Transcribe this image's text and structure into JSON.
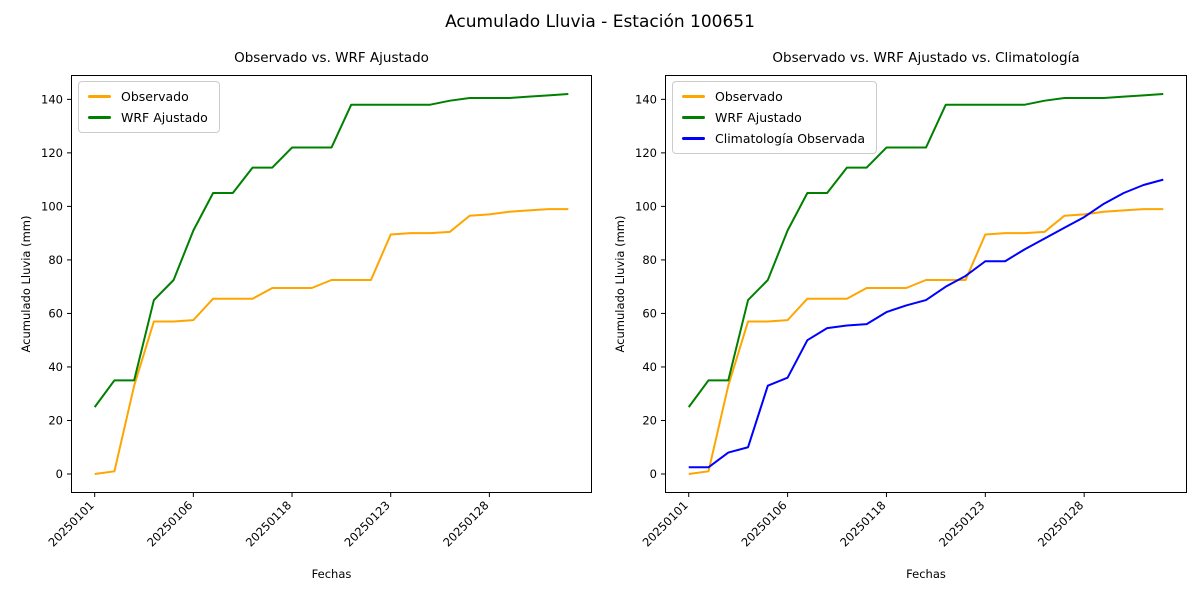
{
  "figure": {
    "suptitle": "Acumulado Lluvia - Estación 100651"
  },
  "chart_data": [
    {
      "type": "line",
      "title": "Observado vs. WRF Ajustado",
      "xlabel": "Fechas",
      "ylabel": "Acumulado Lluvia (mm)",
      "xlim": [
        -1.2,
        25.2
      ],
      "ylim": [
        -7.1,
        149.1
      ],
      "grid": false,
      "legend_position": "upper left",
      "xtick_rotation": 45,
      "xticks": [
        {
          "pos": 0,
          "label": "20250101"
        },
        {
          "pos": 5,
          "label": "20250106"
        },
        {
          "pos": 10,
          "label": "20250118"
        },
        {
          "pos": 15,
          "label": "20250123"
        },
        {
          "pos": 20,
          "label": "20250128"
        }
      ],
      "yticks": [
        0,
        20,
        40,
        60,
        80,
        100,
        120,
        140
      ],
      "series": [
        {
          "name": "Observado",
          "color": "#ffa500",
          "values": [
            0,
            1,
            33,
            57,
            57,
            57.5,
            65.5,
            65.5,
            65.5,
            69.5,
            69.5,
            69.5,
            72.5,
            72.5,
            72.5,
            89.5,
            90,
            90,
            90.5,
            96.5,
            97,
            98,
            98.5,
            99,
            99
          ]
        },
        {
          "name": "WRF Ajustado",
          "color": "#008000",
          "values": [
            25,
            35,
            35,
            65,
            72.5,
            91,
            105,
            105,
            114.5,
            114.5,
            122,
            122,
            122,
            138,
            138,
            138,
            138,
            138,
            139.5,
            140.5,
            140.5,
            140.5,
            141,
            141.5,
            142
          ]
        }
      ]
    },
    {
      "type": "line",
      "title": "Observado vs. WRF Ajustado vs. Climatología",
      "xlabel": "Fechas",
      "ylabel": "Acumulado Lluvia (mm)",
      "xlim": [
        -1.2,
        25.2
      ],
      "ylim": [
        -7.1,
        149.1
      ],
      "grid": false,
      "legend_position": "upper left",
      "xtick_rotation": 45,
      "xticks": [
        {
          "pos": 0,
          "label": "20250101"
        },
        {
          "pos": 5,
          "label": "20250106"
        },
        {
          "pos": 10,
          "label": "20250118"
        },
        {
          "pos": 15,
          "label": "20250123"
        },
        {
          "pos": 20,
          "label": "20250128"
        }
      ],
      "yticks": [
        0,
        20,
        40,
        60,
        80,
        100,
        120,
        140
      ],
      "series": [
        {
          "name": "Observado",
          "color": "#ffa500",
          "values": [
            0,
            1,
            33,
            57,
            57,
            57.5,
            65.5,
            65.5,
            65.5,
            69.5,
            69.5,
            69.5,
            72.5,
            72.5,
            72.5,
            89.5,
            90,
            90,
            90.5,
            96.5,
            97,
            98,
            98.5,
            99,
            99
          ]
        },
        {
          "name": "WRF Ajustado",
          "color": "#008000",
          "values": [
            25,
            35,
            35,
            65,
            72.5,
            91,
            105,
            105,
            114.5,
            114.5,
            122,
            122,
            122,
            138,
            138,
            138,
            138,
            138,
            139.5,
            140.5,
            140.5,
            140.5,
            141,
            141.5,
            142
          ]
        },
        {
          "name": "Climatología Observada",
          "color": "#0000ff",
          "values": [
            2.5,
            2.5,
            8,
            10,
            33,
            36,
            50,
            54.5,
            55.5,
            56,
            60.5,
            63,
            65,
            70,
            74,
            79.5,
            79.5,
            84,
            88,
            92,
            96,
            101,
            105,
            108,
            110
          ]
        }
      ]
    }
  ]
}
